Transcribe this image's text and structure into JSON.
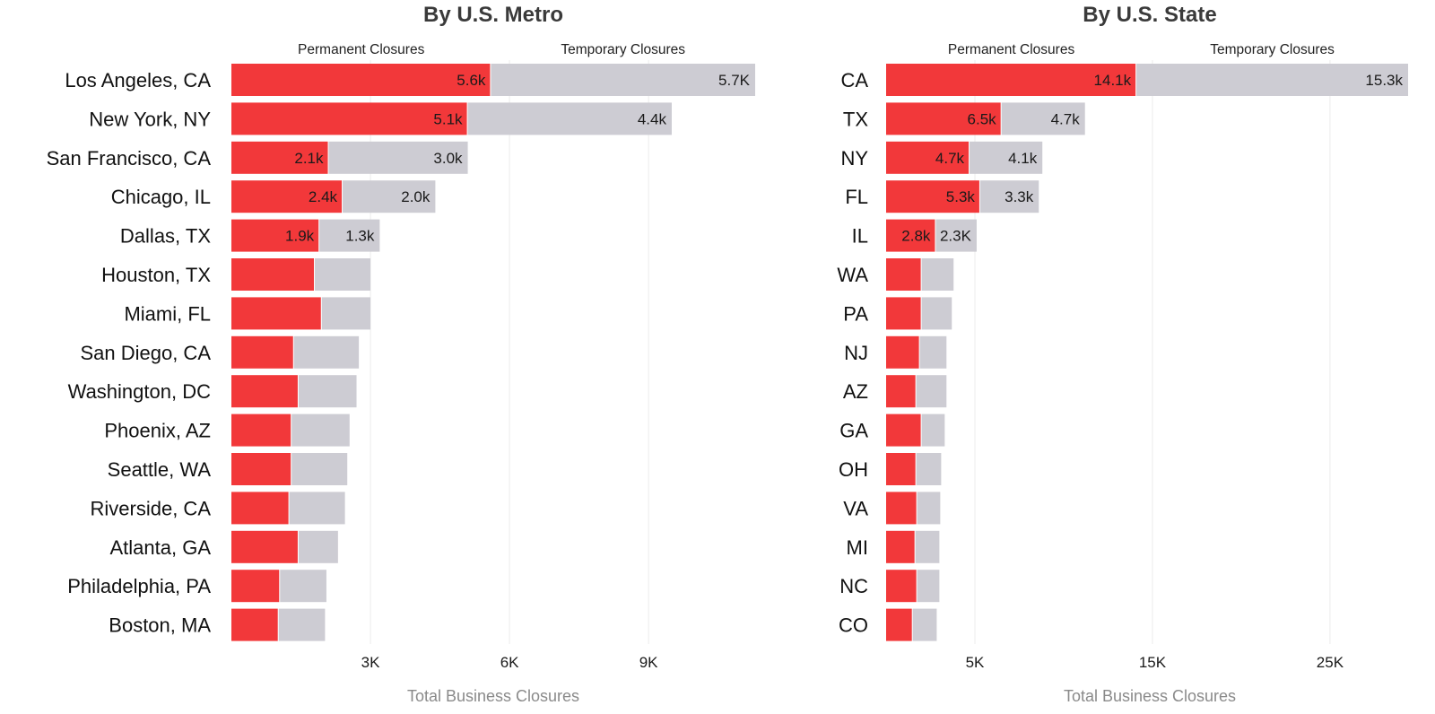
{
  "chart_data": [
    {
      "type": "bar",
      "orientation": "horizontal",
      "stacked": true,
      "title": "By U.S. Metro",
      "xlabel": "Total Business Closures",
      "section_labels": [
        "Permanent Closures",
        "Temporary Closures"
      ],
      "categories": [
        "Los Angeles, CA",
        "New York, NY",
        "San Francisco, CA",
        "Chicago, IL",
        "Dallas, TX",
        "Houston, TX",
        "Miami, FL",
        "San Diego, CA",
        "Washington, DC",
        "Phoenix, AZ",
        "Seattle, WA",
        "Riverside, CA",
        "Atlanta, GA",
        "Philadelphia, PA",
        "Boston, MA"
      ],
      "series": [
        {
          "color": "#f2383a",
          "values": [
            5600,
            5100,
            2100,
            2400,
            1900,
            1800,
            1950,
            1350,
            1450,
            1300,
            1300,
            1250,
            1450,
            1050,
            1020
          ],
          "data_labels": [
            "5.6k",
            "5.1k",
            "2.1k",
            "2.4k",
            "1.9k",
            "",
            "",
            "",
            "",
            "",
            "",
            "",
            "",
            "",
            ""
          ]
        },
        {
          "color": "#cdccd3",
          "values": [
            5700,
            4400,
            3000,
            2000,
            1300,
            1200,
            1050,
            1400,
            1250,
            1250,
            1200,
            1200,
            850,
            1000,
            1000
          ],
          "data_labels": [
            "5.7K",
            "4.4k",
            "3.0k",
            "2.0k",
            "1.3k",
            "",
            "",
            "",
            "",
            "",
            "",
            "",
            "",
            "",
            ""
          ]
        }
      ],
      "xlim": [
        0,
        11300
      ],
      "xticks": [
        3000,
        6000,
        9000
      ],
      "xtick_labels": [
        "3K",
        "6K",
        "9K"
      ],
      "grid": "vertical"
    },
    {
      "type": "bar",
      "orientation": "horizontal",
      "stacked": true,
      "title": "By U.S. State",
      "xlabel": "Total Business Closures",
      "section_labels": [
        "Permanent Closures",
        "Temporary Closures"
      ],
      "categories": [
        "CA",
        "TX",
        "NY",
        "FL",
        "IL",
        "WA",
        "PA",
        "NJ",
        "AZ",
        "GA",
        "OH",
        "VA",
        "MI",
        "NC",
        "CO"
      ],
      "series": [
        {
          "color": "#f2383a",
          "values": [
            14100,
            6500,
            4700,
            5300,
            2800,
            2000,
            2000,
            1900,
            1700,
            2000,
            1700,
            1750,
            1650,
            1750,
            1500
          ],
          "data_labels": [
            "14.1k",
            "6.5k",
            "4.7k",
            "5.3k",
            "2.8k",
            "",
            "",
            "",
            "",
            "",
            "",
            "",
            "",
            "",
            ""
          ]
        },
        {
          "color": "#cdccd3",
          "values": [
            15300,
            4700,
            4100,
            3300,
            2300,
            1800,
            1700,
            1500,
            1700,
            1300,
            1400,
            1300,
            1350,
            1250,
            1350
          ],
          "data_labels": [
            "15.3k",
            "4.7k",
            "4.1k",
            "3.3k",
            "2.3K",
            "",
            "",
            "",
            "",
            "",
            "",
            "",
            "",
            "",
            ""
          ]
        }
      ],
      "xlim": [
        0,
        29500
      ],
      "xticks": [
        5000,
        15000,
        25000
      ],
      "xtick_labels": [
        "5K",
        "15K",
        "25K"
      ],
      "grid": "vertical"
    }
  ]
}
